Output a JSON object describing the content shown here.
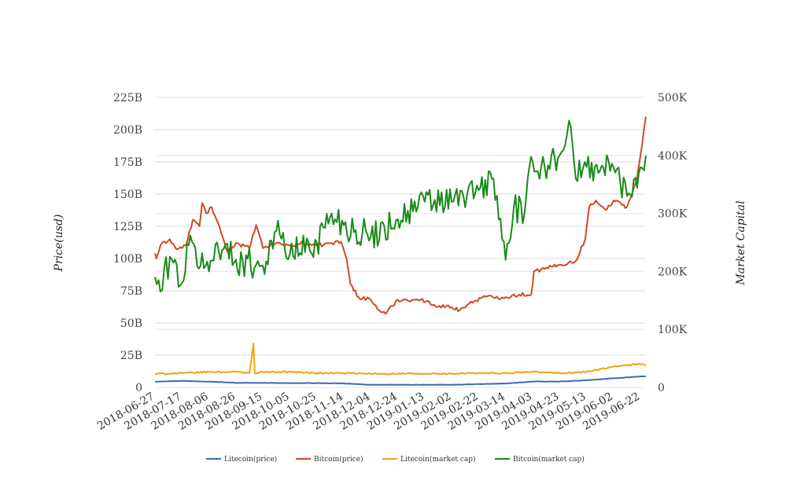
{
  "chart_data": {
    "type": "line",
    "title": "",
    "y_left_label": "Price(usd)",
    "y_right_label": "Market Capital",
    "y_left_ticks": [
      "0",
      "25B",
      "50B",
      "75B",
      "100B",
      "125B",
      "150B",
      "175B",
      "200B",
      "225B"
    ],
    "y_left_range": [
      0,
      225
    ],
    "y_right_ticks": [
      "0",
      "100K",
      "200K",
      "300K",
      "400K",
      "500K"
    ],
    "y_right_range": [
      0,
      500
    ],
    "x_range": [
      "2018-06-27",
      "2019-06-26"
    ],
    "x_ticks": [
      "2018-06-27",
      "2018-07-17",
      "2018-08-06",
      "2018-08-26",
      "2018-09-15",
      "2018-10-05",
      "2018-10-25",
      "2018-11-14",
      "2018-12-04",
      "2018-12-24",
      "2019-01-13",
      "2019-02-02",
      "2019-02-22",
      "2019-03-14",
      "2019-04-03",
      "2019-04-23",
      "2019-05-13",
      "2019-06-02",
      "2019-06-22"
    ],
    "grid": true,
    "legend_position": "bottom",
    "series": [
      {
        "name": "Litecoin(price)",
        "color": "#3a6bb5",
        "axis": "left",
        "points": [
          [
            "2018-06-27",
            4.5
          ],
          [
            "2018-07-17",
            5
          ],
          [
            "2018-08-06",
            4.5
          ],
          [
            "2018-08-26",
            3.5
          ],
          [
            "2018-09-15",
            3.5
          ],
          [
            "2018-10-05",
            3.3
          ],
          [
            "2018-10-25",
            3.3
          ],
          [
            "2018-11-14",
            3.0
          ],
          [
            "2018-12-04",
            2.0
          ],
          [
            "2018-12-24",
            2.0
          ],
          [
            "2019-01-13",
            2.0
          ],
          [
            "2019-02-02",
            2.0
          ],
          [
            "2019-02-22",
            2.5
          ],
          [
            "2019-03-14",
            3.0
          ],
          [
            "2019-04-03",
            4.5
          ],
          [
            "2019-04-23",
            4.5
          ],
          [
            "2019-05-13",
            5.5
          ],
          [
            "2019-06-02",
            7
          ],
          [
            "2019-06-22",
            8.5
          ],
          [
            "2019-06-26",
            8.5
          ]
        ]
      },
      {
        "name": "Bitcoin(price)",
        "color": "#d14a1f",
        "axis": "left",
        "points": [
          [
            "2018-06-27",
            104
          ],
          [
            "2018-06-28",
            100
          ],
          [
            "2018-07-01",
            110
          ],
          [
            "2018-07-08",
            115
          ],
          [
            "2018-07-13",
            107
          ],
          [
            "2018-07-20",
            110
          ],
          [
            "2018-07-25",
            130
          ],
          [
            "2018-07-30",
            125
          ],
          [
            "2018-08-01",
            143
          ],
          [
            "2018-08-04",
            135
          ],
          [
            "2018-08-08",
            140
          ],
          [
            "2018-08-15",
            120
          ],
          [
            "2018-08-20",
            105
          ],
          [
            "2018-08-26",
            112
          ],
          [
            "2018-09-05",
            108
          ],
          [
            "2018-09-10",
            126
          ],
          [
            "2018-09-15",
            108
          ],
          [
            "2018-09-25",
            112
          ],
          [
            "2018-10-05",
            110
          ],
          [
            "2018-10-15",
            112
          ],
          [
            "2018-10-25",
            110
          ],
          [
            "2018-11-05",
            112
          ],
          [
            "2018-11-12",
            113
          ],
          [
            "2018-11-16",
            100
          ],
          [
            "2018-11-19",
            80
          ],
          [
            "2018-11-25",
            70
          ],
          [
            "2018-12-04",
            68
          ],
          [
            "2018-12-10",
            60
          ],
          [
            "2018-12-15",
            57
          ],
          [
            "2018-12-24",
            68
          ],
          [
            "2019-01-05",
            68
          ],
          [
            "2019-01-10",
            68
          ],
          [
            "2019-01-20",
            64
          ],
          [
            "2019-02-02",
            62
          ],
          [
            "2019-02-08",
            60
          ],
          [
            "2019-02-15",
            65
          ],
          [
            "2019-02-25",
            70
          ],
          [
            "2019-03-14",
            70
          ],
          [
            "2019-03-24",
            72
          ],
          [
            "2019-04-02",
            72
          ],
          [
            "2019-04-04",
            90
          ],
          [
            "2019-04-12",
            92
          ],
          [
            "2019-04-23",
            95
          ],
          [
            "2019-05-05",
            98
          ],
          [
            "2019-05-12",
            115
          ],
          [
            "2019-05-15",
            140
          ],
          [
            "2019-05-20",
            145
          ],
          [
            "2019-05-28",
            138
          ],
          [
            "2019-06-02",
            145
          ],
          [
            "2019-06-12",
            140
          ],
          [
            "2019-06-19",
            160
          ],
          [
            "2019-06-22",
            180
          ],
          [
            "2019-06-26",
            210
          ]
        ]
      },
      {
        "name": "Litecoin(market cap)",
        "color": "#f2a20f",
        "axis": "left",
        "points": [
          [
            "2018-06-27",
            10.5
          ],
          [
            "2018-07-17",
            11
          ],
          [
            "2018-08-06",
            12
          ],
          [
            "2018-08-26",
            12
          ],
          [
            "2018-09-05",
            11
          ],
          [
            "2018-09-08",
            34
          ],
          [
            "2018-09-09",
            11
          ],
          [
            "2018-09-15",
            12
          ],
          [
            "2018-10-05",
            12
          ],
          [
            "2018-10-25",
            11
          ],
          [
            "2018-11-14",
            11
          ],
          [
            "2018-12-04",
            10.5
          ],
          [
            "2018-12-24",
            10.5
          ],
          [
            "2019-01-13",
            10.5
          ],
          [
            "2019-02-02",
            10.5
          ],
          [
            "2019-02-22",
            11
          ],
          [
            "2019-03-14",
            11
          ],
          [
            "2019-04-03",
            12
          ],
          [
            "2019-04-23",
            11
          ],
          [
            "2019-05-13",
            12
          ],
          [
            "2019-06-02",
            16
          ],
          [
            "2019-06-22",
            18
          ],
          [
            "2019-06-26",
            17
          ]
        ]
      },
      {
        "name": "Bitcoin(market cap)",
        "color": "#1a8a1a",
        "axis": "right",
        "points": [
          [
            "2018-06-27",
            190
          ],
          [
            "2018-07-01",
            165
          ],
          [
            "2018-07-08",
            225
          ],
          [
            "2018-07-17",
            180
          ],
          [
            "2018-07-22",
            245
          ],
          [
            "2018-08-06",
            200
          ],
          [
            "2018-08-12",
            250
          ],
          [
            "2018-08-26",
            220
          ],
          [
            "2018-09-15",
            210
          ],
          [
            "2018-09-25",
            270
          ],
          [
            "2018-10-05",
            230
          ],
          [
            "2018-10-25",
            250
          ],
          [
            "2018-11-05",
            300
          ],
          [
            "2018-11-14",
            280
          ],
          [
            "2018-12-04",
            260
          ],
          [
            "2018-12-24",
            290
          ],
          [
            "2019-01-13",
            320
          ],
          [
            "2019-02-02",
            320
          ],
          [
            "2019-02-22",
            340
          ],
          [
            "2019-03-05",
            360
          ],
          [
            "2019-03-14",
            220
          ],
          [
            "2019-03-20",
            310
          ],
          [
            "2019-03-28",
            300
          ],
          [
            "2019-04-03",
            390
          ],
          [
            "2019-04-12",
            380
          ],
          [
            "2019-04-23",
            400
          ],
          [
            "2019-04-30",
            460
          ],
          [
            "2019-05-05",
            360
          ],
          [
            "2019-05-13",
            380
          ],
          [
            "2019-06-02",
            380
          ],
          [
            "2019-06-12",
            330
          ],
          [
            "2019-06-22",
            380
          ],
          [
            "2019-06-26",
            400
          ]
        ]
      }
    ]
  }
}
